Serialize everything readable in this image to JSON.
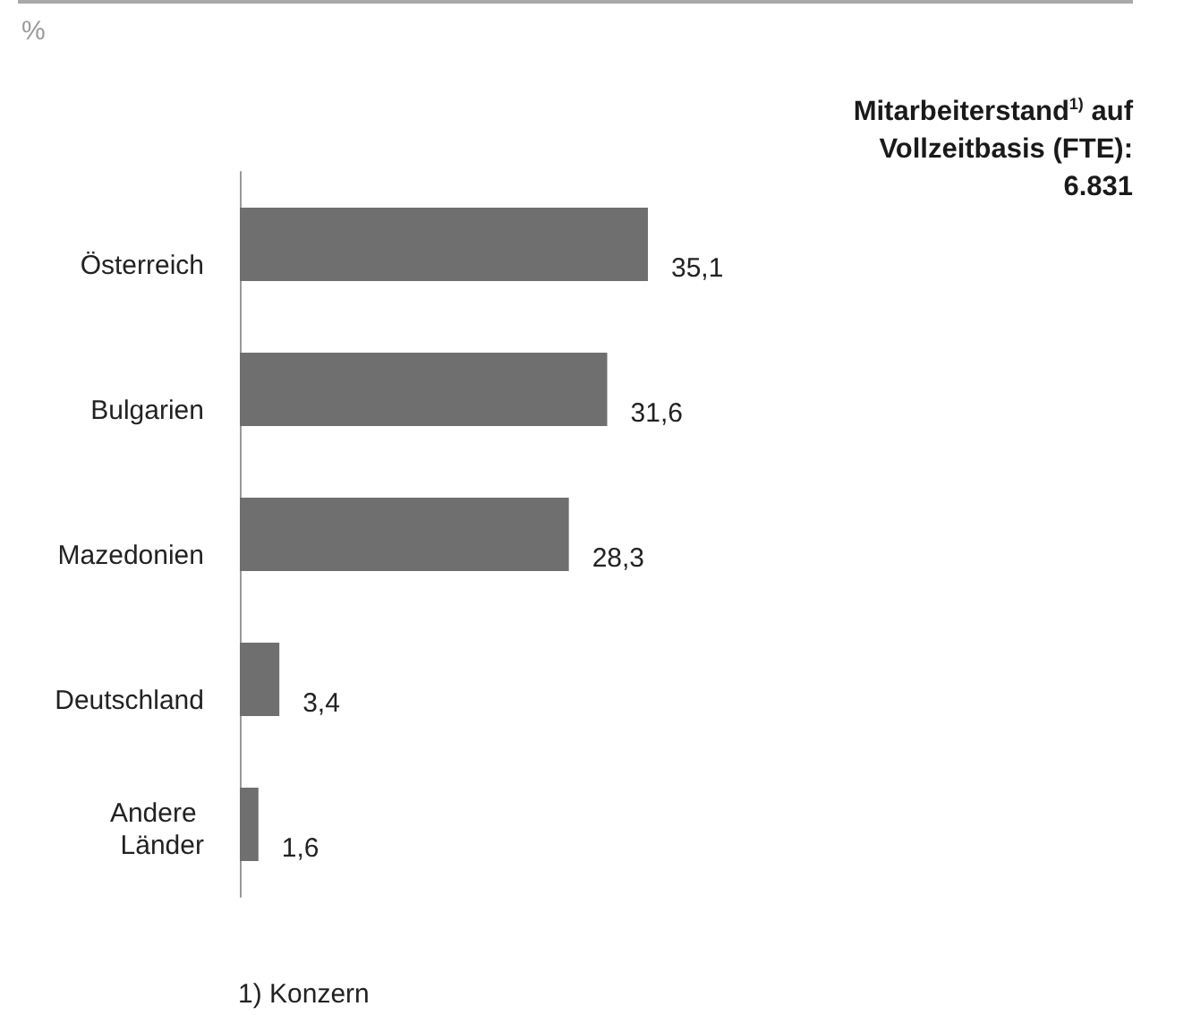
{
  "chart_data": {
    "type": "bar",
    "orientation": "horizontal",
    "title": "Mitarbeiterstand$^{1)}$ auf Vollzeitbasis (FTE): 6.831",
    "xlabel": "%",
    "categories": [
      "Österreich",
      "Bulgarien",
      "Mazedonien",
      "Deutschland",
      "Andere Länder"
    ],
    "values": [
      35.1,
      31.6,
      28.3,
      3.4,
      1.6
    ],
    "value_labels": [
      "35,1",
      "31,6",
      "28,3",
      "3,4",
      "1,6"
    ],
    "color": "#6f6f6f",
    "annotations": [
      "1) Konzern"
    ]
  }
}
